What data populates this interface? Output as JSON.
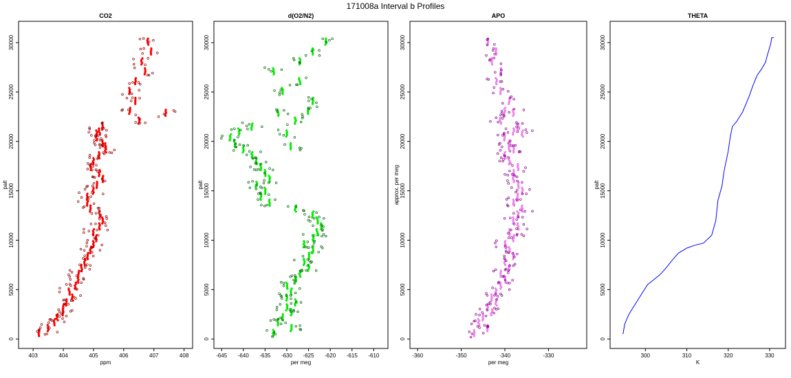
{
  "figure": {
    "title": "171008a   Interval b Profiles"
  },
  "chart_data": [
    {
      "type": "scatter",
      "title": "CO2",
      "xlabel": "ppm",
      "ylabel": "palt",
      "xlim": [
        402.7,
        408.1
      ],
      "ylim": [
        -400,
        31600
      ],
      "xticks": [
        403,
        404,
        405,
        406,
        407,
        408
      ],
      "yticks": [
        0,
        5000,
        10000,
        15000,
        20000,
        25000,
        30000
      ],
      "color": "#ff0000",
      "edge_color": "#8b0000",
      "series": [
        {
          "x": [
            403.2,
            403.5,
            403.7,
            403.8,
            404.0,
            404.0,
            404.1,
            404.3,
            404.2,
            404.4,
            404.5,
            404.5,
            404.6,
            404.7,
            404.8,
            404.9,
            405.0,
            405.1,
            405.0,
            405.2,
            405.3,
            405.2,
            404.9,
            404.8,
            404.8,
            405.0,
            405.1,
            405.3,
            405.2,
            404.9,
            405.0,
            405.2,
            405.4,
            405.3,
            405.1,
            405.2,
            405.3,
            405.1,
            405.4,
            406.5,
            406.2,
            406.4,
            406.2,
            406.4,
            406.7,
            406.6,
            406.9,
            406.8,
            407.4
          ],
          "y": [
            600,
            1100,
            1700,
            2200,
            2700,
            3200,
            3700,
            4200,
            4800,
            5400,
            6000,
            6600,
            7200,
            7800,
            8400,
            9000,
            9600,
            10200,
            10800,
            11400,
            12000,
            12600,
            13200,
            13800,
            14400,
            15000,
            15600,
            16200,
            16800,
            17400,
            18000,
            18600,
            19200,
            19800,
            20400,
            21000,
            21500,
            20800,
            19500,
            22100,
            23100,
            24100,
            25100,
            26100,
            27100,
            28100,
            29100,
            30100,
            22900
          ]
        }
      ]
    },
    {
      "type": "scatter",
      "title": "d(O2/N2)",
      "xlabel": "per meg",
      "ylabel": "palt",
      "xlim": [
        -645.5,
        -608
      ],
      "ylim": [
        -400,
        31600
      ],
      "xticks": [
        -645,
        -640,
        -635,
        -630,
        -625,
        -620,
        -615,
        -610
      ],
      "yticks": [
        0,
        5000,
        10000,
        15000,
        20000,
        25000,
        30000
      ],
      "color": "#00ee00",
      "edge_color": "#006400",
      "series": [
        {
          "x": [
            -633,
            -629,
            -632,
            -631,
            -629,
            -630,
            -628,
            -630,
            -629,
            -630,
            -628,
            -627,
            -625,
            -626,
            -625,
            -624,
            -626,
            -624,
            -623,
            -622,
            -623,
            -624,
            -628,
            -634,
            -636,
            -635,
            -637,
            -634,
            -635,
            -636,
            -637,
            -638,
            -640,
            -642,
            -643,
            -641,
            -638,
            -630,
            -629,
            -628,
            -625,
            -624,
            -631,
            -627,
            -633,
            -627,
            -624,
            -621,
            -632
          ],
          "y": [
            600,
            1100,
            1700,
            2200,
            2700,
            3200,
            3700,
            4200,
            4800,
            5400,
            6000,
            6600,
            7200,
            7800,
            8400,
            9000,
            9600,
            10200,
            10800,
            11400,
            12000,
            12600,
            13200,
            13800,
            14400,
            15000,
            15600,
            16200,
            16800,
            17400,
            18000,
            18600,
            19200,
            19800,
            20400,
            21000,
            21500,
            20800,
            19500,
            22100,
            23100,
            24100,
            25100,
            26100,
            27100,
            28100,
            29100,
            30100,
            22900
          ]
        }
      ]
    },
    {
      "type": "scatter",
      "title": "APO",
      "xlabel": "per meg",
      "ylabel": "approx. per meg",
      "xlim": [
        -360.5,
        -322.5
      ],
      "ylim": [
        -400,
        31600
      ],
      "xticks": [
        -360,
        -350,
        -340,
        -330
      ],
      "yticks": [
        0,
        5000,
        10000,
        15000,
        20000,
        25000,
        30000
      ],
      "color": "#ee82ee",
      "edge_color": "#8b008b",
      "series": [
        {
          "x": [
            -347,
            -344,
            -346,
            -345,
            -343,
            -344,
            -342,
            -343,
            -342,
            -341,
            -340,
            -341,
            -339,
            -340,
            -338,
            -339,
            -340,
            -338,
            -339,
            -337,
            -338,
            -337,
            -336,
            -338,
            -337,
            -336,
            -337,
            -338,
            -338,
            -337,
            -339,
            -340,
            -338,
            -339,
            -340,
            -338,
            -337,
            -336,
            -339,
            -341,
            -340,
            -339,
            -341,
            -342,
            -341,
            -343,
            -342,
            -344,
            -338
          ],
          "y": [
            600,
            1100,
            1700,
            2200,
            2700,
            3200,
            3700,
            4200,
            4800,
            5400,
            6000,
            6600,
            7200,
            7800,
            8400,
            9000,
            9600,
            10200,
            10800,
            11400,
            12000,
            12600,
            13200,
            13800,
            14400,
            15000,
            15600,
            16200,
            16800,
            17400,
            18000,
            18600,
            19200,
            19800,
            20400,
            21000,
            21500,
            20800,
            19500,
            22100,
            23100,
            24100,
            25100,
            26100,
            27100,
            28100,
            29100,
            30100,
            22900
          ]
        }
      ]
    },
    {
      "type": "line",
      "title": "THETA",
      "xlabel": "K",
      "ylabel": "palt",
      "xlim": [
        292.8,
        332.5
      ],
      "ylim": [
        -400,
        31600
      ],
      "xticks": [
        300,
        310,
        320,
        330
      ],
      "yticks": [
        0,
        5000,
        10000,
        15000,
        20000,
        25000,
        30000
      ],
      "color": "#0000ff",
      "series": [
        {
          "x": [
            294.6,
            295.0,
            296.0,
            297.5,
            299.0,
            300.5,
            302.0,
            303.5,
            305.0,
            306.5,
            308.0,
            310.0,
            312.0,
            314.0,
            316.0,
            317.0,
            317.5,
            318.5,
            319.0,
            320.0,
            320.5,
            321.0,
            322.0,
            323.5,
            325.0,
            326.0,
            327.0,
            328.0,
            329.0,
            329.5,
            330.0,
            330.3,
            330.5,
            331.0
          ],
          "y": [
            500,
            1500,
            2500,
            3500,
            4500,
            5500,
            6000,
            6500,
            7200,
            8000,
            8700,
            9200,
            9500,
            9700,
            10500,
            12000,
            14000,
            15500,
            17000,
            19000,
            20500,
            21500,
            22000,
            23000,
            24500,
            25700,
            26700,
            27300,
            28000,
            28800,
            29500,
            30000,
            30500,
            30500
          ]
        }
      ]
    }
  ]
}
